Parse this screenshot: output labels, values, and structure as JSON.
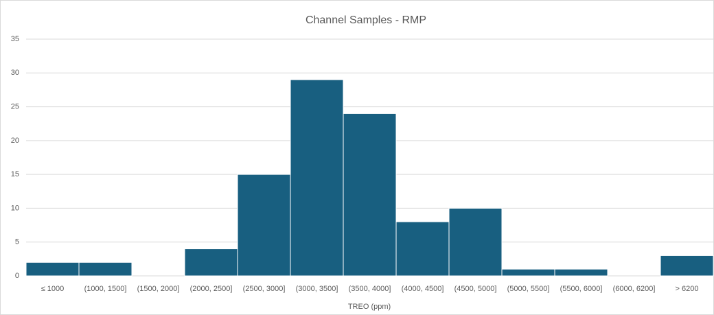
{
  "chart_data": {
    "type": "bar",
    "title": "Channel Samples - RMP",
    "x_label": "TREO (ppm)",
    "categories": [
      "≤ 1000",
      "(1000, 1500]",
      "(1500, 2000]",
      "(2000, 2500]",
      "(2500, 3000]",
      "(3000, 3500]",
      "(3500, 4000]",
      "(4000, 4500]",
      "(4500, 5000]",
      "(5000, 5500]",
      "(5500, 6000]",
      "(6000, 6200]",
      "> 6200"
    ],
    "values": [
      2,
      2,
      0,
      4,
      15,
      29,
      24,
      8,
      10,
      1,
      1,
      0,
      3
    ],
    "color": "#185f80",
    "ylim": [
      0,
      35
    ],
    "yticks": [
      0,
      5,
      10,
      15,
      20,
      25,
      30,
      35
    ],
    "grid": true
  }
}
